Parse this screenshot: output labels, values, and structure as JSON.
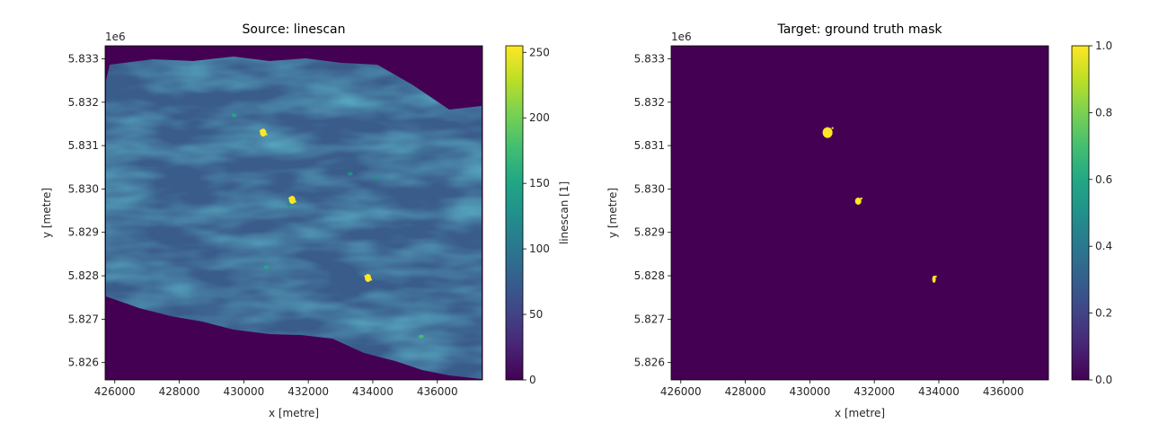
{
  "chart_data": [
    {
      "type": "heatmap",
      "title": "Source: linescan",
      "xlabel": "x [metre]",
      "ylabel": "y [metre]",
      "y_offset_label": "1e6",
      "xlim": [
        425700,
        437400
      ],
      "ylim": [
        5825600,
        5833300
      ],
      "x_ticks": [
        426000,
        428000,
        430000,
        432000,
        434000,
        436000
      ],
      "x_tick_labels": [
        "426000",
        "428000",
        "430000",
        "432000",
        "434000",
        "436000"
      ],
      "y_ticks": [
        5826000,
        5827000,
        5828000,
        5829000,
        5830000,
        5831000,
        5832000,
        5833000
      ],
      "y_tick_labels": [
        "5.826",
        "5.827",
        "5.828",
        "5.829",
        "5.830",
        "5.831",
        "5.832",
        "5.833"
      ],
      "colorbar": {
        "label": "linescan [1]",
        "range": [
          0,
          255
        ],
        "ticks": [
          0,
          50,
          100,
          150,
          200,
          250
        ],
        "tick_labels": [
          "0",
          "50",
          "100",
          "150",
          "200",
          "250"
        ],
        "colormap": "viridis"
      },
      "background_value": 0,
      "typical_value": 60,
      "hotspots": [
        {
          "x": 430600,
          "y": 5831300,
          "value": 255
        },
        {
          "x": 431500,
          "y": 5829750,
          "value": 255
        },
        {
          "x": 433850,
          "y": 5827950,
          "value": 255
        }
      ],
      "faint_spots": [
        {
          "x": 429700,
          "y": 5831700,
          "value": 150
        },
        {
          "x": 431400,
          "y": 5829650,
          "value": 140
        },
        {
          "x": 433300,
          "y": 5830350,
          "value": 130
        },
        {
          "x": 434100,
          "y": 5830250,
          "value": 140
        },
        {
          "x": 430700,
          "y": 5828200,
          "value": 150
        },
        {
          "x": 435500,
          "y": 5826600,
          "value": 170
        }
      ]
    },
    {
      "type": "heatmap",
      "title": "Target: ground truth mask",
      "xlabel": "x [metre]",
      "ylabel": "y [metre]",
      "y_offset_label": "1e6",
      "xlim": [
        425700,
        437400
      ],
      "ylim": [
        5825600,
        5833300
      ],
      "x_ticks": [
        426000,
        428000,
        430000,
        432000,
        434000,
        436000
      ],
      "x_tick_labels": [
        "426000",
        "428000",
        "430000",
        "432000",
        "434000",
        "436000"
      ],
      "y_ticks": [
        5826000,
        5827000,
        5828000,
        5829000,
        5830000,
        5831000,
        5832000,
        5833000
      ],
      "y_tick_labels": [
        "5.826",
        "5.827",
        "5.828",
        "5.829",
        "5.830",
        "5.831",
        "5.832",
        "5.833"
      ],
      "colorbar": {
        "label": "",
        "range": [
          0,
          1
        ],
        "ticks": [
          0,
          0.2,
          0.4,
          0.6,
          0.8,
          1.0
        ],
        "tick_labels": [
          "0.0",
          "0.2",
          "0.4",
          "0.6",
          "0.8",
          "1.0"
        ],
        "colormap": "viridis"
      },
      "background_value": 0,
      "mask_spots": [
        {
          "x": 430550,
          "y": 5831300,
          "value": 1
        },
        {
          "x": 431500,
          "y": 5829720,
          "value": 1
        },
        {
          "x": 433850,
          "y": 5827920,
          "value": 1
        }
      ]
    }
  ]
}
